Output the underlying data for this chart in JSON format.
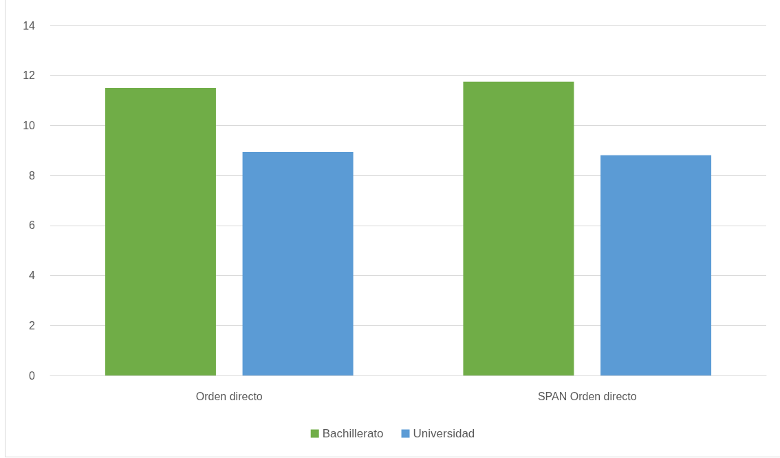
{
  "chart_data": {
    "type": "bar",
    "categories": [
      "Orden directo",
      "SPAN Orden directo"
    ],
    "series": [
      {
        "name": "Bachillerato",
        "color": "#70ad47",
        "values": [
          11.5,
          11.75
        ]
      },
      {
        "name": "Universidad",
        "color": "#5b9bd5",
        "values": [
          8.94,
          8.81
        ]
      }
    ],
    "ylim": [
      0,
      14
    ],
    "yticks": [
      0,
      2,
      4,
      6,
      8,
      10,
      12,
      14
    ],
    "grid": "y",
    "legend": "bottom"
  }
}
